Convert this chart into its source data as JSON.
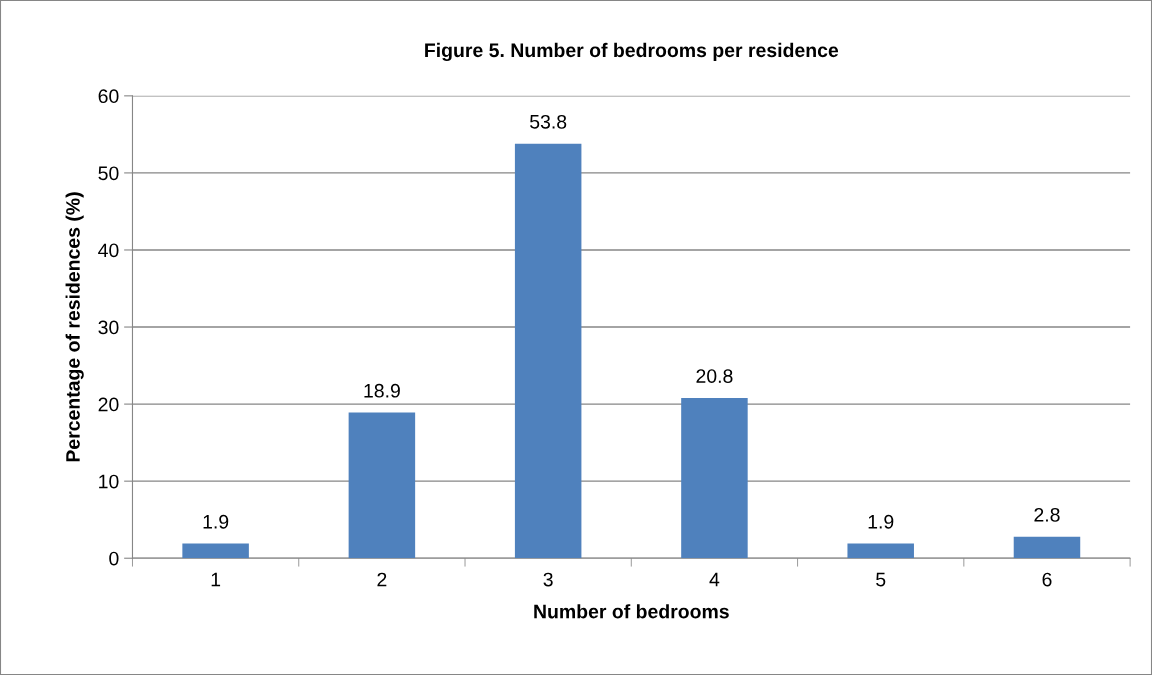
{
  "chart_data": {
    "type": "bar",
    "title": "Figure 5. Number of bedrooms per residence",
    "xlabel": "Number of bedrooms",
    "ylabel": "Percentage of residences (%)",
    "categories": [
      "1",
      "2",
      "3",
      "4",
      "5",
      "6"
    ],
    "values": [
      1.9,
      18.9,
      53.8,
      20.8,
      1.9,
      2.8
    ],
    "color": "#4f81bd",
    "ylim": [
      0,
      60
    ],
    "yticks": [
      0,
      10,
      20,
      30,
      40,
      50,
      60
    ],
    "grid": "y",
    "data_labels": true
  }
}
